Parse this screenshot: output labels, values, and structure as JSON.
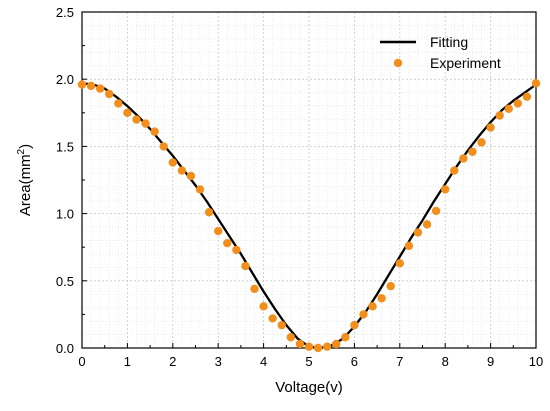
{
  "chart_data": {
    "type": "scatter",
    "title": "",
    "xlabel": "Voltage(v)",
    "ylabel_main": "Area(mm",
    "ylabel_sup": "2",
    "ylabel_close": ")",
    "xlim": [
      0,
      10
    ],
    "ylim": [
      0,
      2.5
    ],
    "xticks": [
      0,
      1,
      2,
      3,
      4,
      5,
      6,
      7,
      8,
      9,
      10
    ],
    "yticks": [
      0.0,
      0.5,
      1.0,
      1.5,
      2.0,
      2.5
    ],
    "xtick_labels": [
      "0",
      "1",
      "2",
      "3",
      "4",
      "5",
      "6",
      "7",
      "8",
      "9",
      "10"
    ],
    "ytick_labels": [
      "0.0",
      "0.5",
      "1.0",
      "1.5",
      "2.0",
      "2.5"
    ],
    "grid": true,
    "legend_position": "top-right",
    "series": [
      {
        "name": "Fitting",
        "kind": "line",
        "color": "#000000",
        "x": [
          0,
          0.25,
          0.5,
          0.75,
          1.0,
          1.25,
          1.5,
          1.75,
          2.0,
          2.25,
          2.5,
          2.75,
          3.0,
          3.25,
          3.5,
          3.75,
          4.0,
          4.25,
          4.5,
          4.75,
          5.0,
          5.25,
          5.5,
          5.75,
          6.0,
          6.25,
          6.5,
          6.75,
          7.0,
          7.25,
          7.5,
          7.75,
          8.0,
          8.25,
          8.5,
          8.75,
          9.0,
          9.25,
          9.5,
          9.75,
          10.0
        ],
        "y": [
          1.97,
          1.96,
          1.93,
          1.87,
          1.8,
          1.72,
          1.63,
          1.53,
          1.43,
          1.32,
          1.21,
          1.09,
          0.96,
          0.83,
          0.7,
          0.56,
          0.42,
          0.29,
          0.17,
          0.07,
          0.01,
          0.0,
          0.02,
          0.07,
          0.16,
          0.27,
          0.4,
          0.54,
          0.68,
          0.82,
          0.95,
          1.09,
          1.22,
          1.35,
          1.47,
          1.58,
          1.68,
          1.77,
          1.84,
          1.9,
          1.96
        ]
      },
      {
        "name": "Experiment",
        "kind": "scatter",
        "color": "#f28e1c",
        "x": [
          0.0,
          0.2,
          0.4,
          0.6,
          0.8,
          1.0,
          1.2,
          1.4,
          1.6,
          1.8,
          2.0,
          2.2,
          2.4,
          2.6,
          2.8,
          3.0,
          3.2,
          3.4,
          3.6,
          3.8,
          4.0,
          4.2,
          4.4,
          4.6,
          4.8,
          5.0,
          5.2,
          5.4,
          5.6,
          5.8,
          6.0,
          6.2,
          6.4,
          6.6,
          6.8,
          7.0,
          7.2,
          7.4,
          7.6,
          7.8,
          8.0,
          8.2,
          8.4,
          8.6,
          8.8,
          9.0,
          9.2,
          9.4,
          9.6,
          9.8,
          10.0
        ],
        "y": [
          1.96,
          1.95,
          1.93,
          1.89,
          1.82,
          1.75,
          1.7,
          1.67,
          1.61,
          1.5,
          1.38,
          1.32,
          1.28,
          1.18,
          1.01,
          0.87,
          0.78,
          0.73,
          0.61,
          0.44,
          0.31,
          0.22,
          0.17,
          0.08,
          0.03,
          0.01,
          0.0,
          0.01,
          0.03,
          0.08,
          0.17,
          0.25,
          0.31,
          0.37,
          0.46,
          0.63,
          0.76,
          0.86,
          0.92,
          1.02,
          1.18,
          1.32,
          1.41,
          1.46,
          1.53,
          1.64,
          1.73,
          1.78,
          1.82,
          1.87,
          1.97
        ]
      }
    ]
  }
}
